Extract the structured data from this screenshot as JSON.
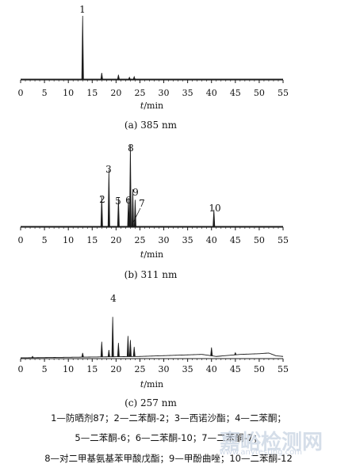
{
  "chart_data": [
    {
      "type": "line",
      "caption": "(a) 385 nm",
      "xlabel_italic": "t",
      "xlabel_unit": "/min",
      "xlim": [
        0,
        55
      ],
      "x_ticks": [
        0,
        5,
        10,
        15,
        20,
        25,
        30,
        35,
        40,
        45,
        50,
        55
      ],
      "baseline_rel": 0.0,
      "peaks": [
        {
          "rt": 13.0,
          "height": 1.0,
          "label": "1"
        },
        {
          "rt": 17.0,
          "height": 0.1,
          "label": ""
        },
        {
          "rt": 20.5,
          "height": 0.07,
          "label": ""
        },
        {
          "rt": 22.8,
          "height": 0.03,
          "label": ""
        },
        {
          "rt": 23.8,
          "height": 0.04,
          "label": ""
        }
      ],
      "drift": []
    },
    {
      "type": "line",
      "caption": "(b) 311 nm",
      "xlabel_italic": "t",
      "xlabel_unit": "/min",
      "xlim": [
        0,
        55
      ],
      "x_ticks": [
        0,
        5,
        10,
        15,
        20,
        25,
        30,
        35,
        40,
        45,
        50,
        55
      ],
      "baseline_rel": 0.0,
      "peaks": [
        {
          "rt": 17.0,
          "height": 0.34,
          "label": "2"
        },
        {
          "rt": 18.5,
          "height": 0.64,
          "label": "3"
        },
        {
          "rt": 20.5,
          "height": 0.32,
          "label": "5"
        },
        {
          "rt": 22.6,
          "height": 0.32,
          "label": "6"
        },
        {
          "rt": 23.0,
          "height": 0.92,
          "label": "8"
        },
        {
          "rt": 23.5,
          "height": 0.42,
          "label": "9"
        },
        {
          "rt": 24.0,
          "height": 0.3,
          "label": "7"
        },
        {
          "rt": 40.5,
          "height": 0.19,
          "label": "10"
        }
      ],
      "drift": []
    },
    {
      "type": "line",
      "caption": "(c) 257 nm",
      "xlabel_italic": "t",
      "xlabel_unit": "/min",
      "xlim": [
        0,
        55
      ],
      "x_ticks": [
        0,
        5,
        10,
        15,
        20,
        25,
        30,
        35,
        40,
        45,
        50,
        55
      ],
      "baseline_rel": 0.0,
      "peaks": [
        {
          "rt": 2.5,
          "height": 0.02,
          "label": ""
        },
        {
          "rt": 13.0,
          "height": 0.06,
          "label": ""
        },
        {
          "rt": 17.0,
          "height": 0.22,
          "label": ""
        },
        {
          "rt": 18.5,
          "height": 0.1,
          "label": ""
        },
        {
          "rt": 19.3,
          "height": 0.58,
          "label": "4"
        },
        {
          "rt": 20.5,
          "height": 0.2,
          "label": ""
        },
        {
          "rt": 22.5,
          "height": 0.3,
          "label": ""
        },
        {
          "rt": 23.0,
          "height": 0.24,
          "label": ""
        },
        {
          "rt": 23.8,
          "height": 0.14,
          "label": ""
        },
        {
          "rt": 40.0,
          "height": 0.12,
          "label": ""
        },
        {
          "rt": 45.0,
          "height": 0.03,
          "label": ""
        }
      ],
      "drift": [
        {
          "x": 0,
          "y": 0.0
        },
        {
          "x": 25,
          "y": 0.02
        },
        {
          "x": 38,
          "y": 0.05
        },
        {
          "x": 41,
          "y": 0.02
        },
        {
          "x": 46,
          "y": 0.05
        },
        {
          "x": 50,
          "y": 0.06
        },
        {
          "x": 52,
          "y": 0.07
        },
        {
          "x": 53.5,
          "y": 0.03
        },
        {
          "x": 55,
          "y": 0.02
        }
      ]
    }
  ],
  "legend_lines": [
    "1—防晒剂87；2—二苯酮-2；3—西诺沙酯；4—二苯酮；",
    "5—二苯酮-6；6—二苯酮-10；7—二苯酮-7；",
    "8—对二甲基氨基苯甲酸戊酯；9—甲酚曲唑；10—二苯酮-12"
  ],
  "watermark": {
    "main": "嘉峪检测网",
    "sub": "www.anytesting.com"
  },
  "colors": {
    "trace": "#1a1a1a",
    "axis": "#1a1a1a",
    "watermark": "#c8d3e2"
  }
}
